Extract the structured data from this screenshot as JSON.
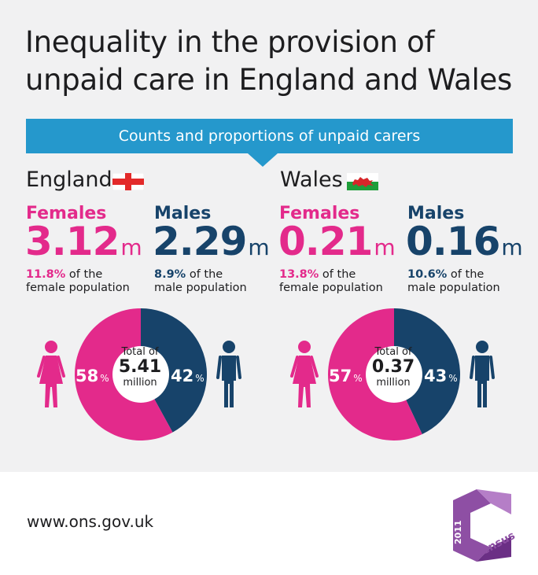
{
  "title_line1": "Inequality in the provision of",
  "title_line2": "unpaid care in England and Wales",
  "banner": "Counts and proportions of unpaid carers",
  "colors": {
    "female": "#e32a8b",
    "male": "#17436a",
    "banner": "#2598cc",
    "panel": "#f1f1f2"
  },
  "england": {
    "country": "England",
    "flag_icon": "england-flag-icon",
    "female_label": "Females",
    "female_value": "3.12",
    "female_unit": "m",
    "female_pct": "11.8%",
    "female_note_rest": " of the",
    "female_note_line2": "female population",
    "male_label": "Males",
    "male_value": "2.29",
    "male_unit": "m",
    "male_pct": "8.9%",
    "male_note_rest": " of the",
    "male_note_line2": "male population",
    "total_line1": "Total of",
    "total_value": "5.41",
    "total_line3": "million",
    "female_share_label": "58",
    "male_share_label": "42",
    "pct_sign": "%"
  },
  "wales": {
    "country": "Wales",
    "flag_icon": "wales-flag-icon",
    "female_label": "Females",
    "female_value": "0.21",
    "female_unit": "m",
    "female_pct": "13.8%",
    "female_note_rest": " of the",
    "female_note_line2": "female population",
    "male_label": "Males",
    "male_value": "0.16",
    "male_unit": "m",
    "male_pct": "10.6%",
    "male_note_rest": " of the",
    "male_note_line2": "male population",
    "total_line1": "Total of",
    "total_value": "0.37",
    "total_line3": "million",
    "female_share_label": "57",
    "male_share_label": "43",
    "pct_sign": "%"
  },
  "footer": {
    "url": "www.ons.gov.uk",
    "logo_year": "2011",
    "logo_word": "Census"
  },
  "chart_data": [
    {
      "type": "pie",
      "title": "England",
      "categories": [
        "Females",
        "Males"
      ],
      "values": [
        58,
        42
      ],
      "counts_millions": [
        3.12,
        2.29
      ],
      "total_millions": 5.41,
      "percent_of_population": [
        11.8,
        8.9
      ]
    },
    {
      "type": "pie",
      "title": "Wales",
      "categories": [
        "Females",
        "Males"
      ],
      "values": [
        57,
        43
      ],
      "counts_millions": [
        0.21,
        0.16
      ],
      "total_millions": 0.37,
      "percent_of_population": [
        13.8,
        10.6
      ]
    }
  ]
}
